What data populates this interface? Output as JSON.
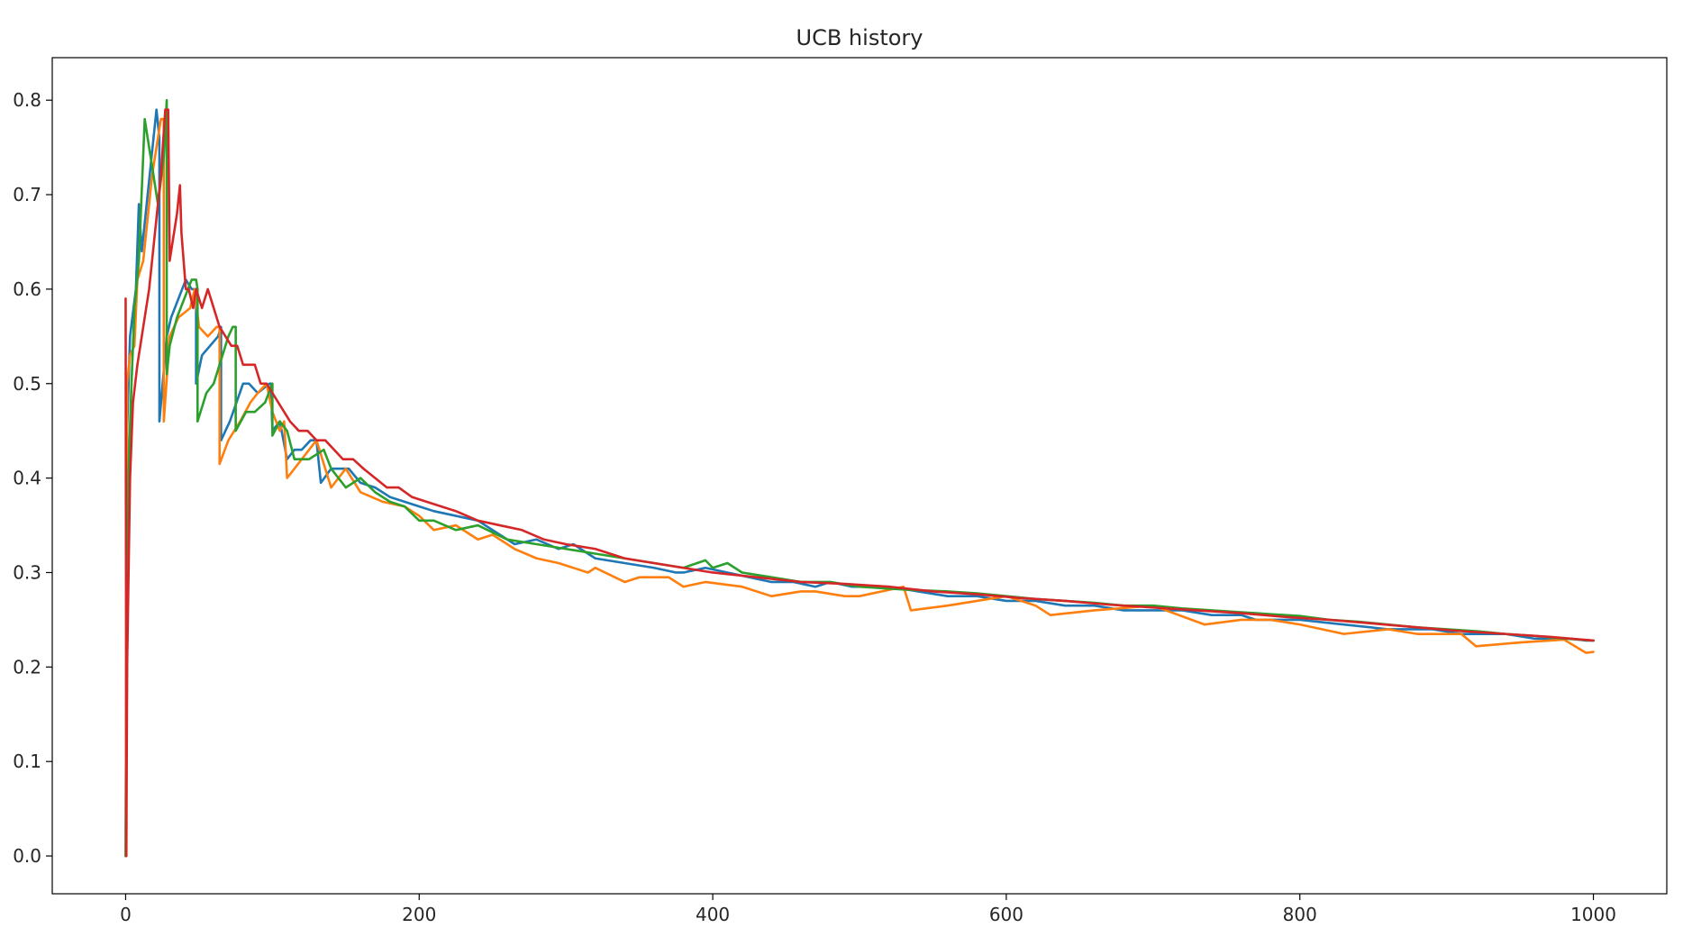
{
  "chart_data": {
    "type": "line",
    "title": "UCB history",
    "xlabel": "",
    "ylabel": "",
    "xlim": [
      -50,
      1050
    ],
    "ylim": [
      -0.04,
      0.845
    ],
    "xticks": [
      0,
      200,
      400,
      600,
      800,
      1000
    ],
    "yticks": [
      0.0,
      0.1,
      0.2,
      0.3,
      0.4,
      0.5,
      0.6,
      0.7,
      0.8
    ],
    "grid": false,
    "legend": "none",
    "series": [
      {
        "color": "#1f77b4",
        "x": [
          0,
          1,
          3,
          7,
          9,
          11,
          21,
          23,
          23,
          28,
          31,
          41,
          45,
          48,
          48,
          52,
          63,
          65,
          65,
          71,
          80,
          84,
          90,
          98,
          99,
          100,
          105,
          110,
          115,
          120,
          126,
          130,
          133,
          140,
          148,
          152,
          160,
          170,
          180,
          190,
          200,
          210,
          225,
          240,
          250,
          260,
          265,
          280,
          295,
          305,
          315,
          320,
          340,
          360,
          375,
          380,
          395,
          410,
          425,
          440,
          455,
          470,
          480,
          495,
          500,
          520,
          540,
          560,
          580,
          600,
          620,
          640,
          660,
          680,
          690,
          720,
          740,
          760,
          770,
          790,
          800,
          830,
          860,
          880,
          890,
          910,
          920,
          940,
          960,
          975,
          985,
          995,
          1000
        ],
        "y": [
          0.0,
          0.45,
          0.55,
          0.6,
          0.69,
          0.64,
          0.79,
          0.76,
          0.46,
          0.55,
          0.57,
          0.61,
          0.6,
          0.6,
          0.5,
          0.53,
          0.55,
          0.56,
          0.44,
          0.46,
          0.5,
          0.5,
          0.49,
          0.5,
          0.5,
          0.45,
          0.46,
          0.42,
          0.43,
          0.43,
          0.44,
          0.44,
          0.395,
          0.41,
          0.41,
          0.41,
          0.395,
          0.39,
          0.38,
          0.375,
          0.37,
          0.365,
          0.36,
          0.355,
          0.345,
          0.335,
          0.33,
          0.335,
          0.325,
          0.33,
          0.32,
          0.315,
          0.31,
          0.305,
          0.3,
          0.3,
          0.305,
          0.3,
          0.295,
          0.29,
          0.29,
          0.285,
          0.29,
          0.285,
          0.285,
          0.285,
          0.28,
          0.275,
          0.275,
          0.27,
          0.27,
          0.265,
          0.265,
          0.26,
          0.26,
          0.26,
          0.255,
          0.255,
          0.25,
          0.25,
          0.25,
          0.245,
          0.24,
          0.24,
          0.24,
          0.235,
          0.235,
          0.235,
          0.23,
          0.23,
          0.23,
          0.228,
          0.228
        ]
      },
      {
        "color": "#ff7f0e",
        "x": [
          0,
          1,
          3,
          6,
          8,
          12,
          18,
          24,
          26,
          26,
          30,
          36,
          44,
          47,
          50,
          56,
          62,
          64,
          64,
          70,
          78,
          85,
          90,
          96,
          100,
          105,
          108,
          110,
          120,
          130,
          140,
          150,
          160,
          175,
          190,
          200,
          210,
          225,
          240,
          250,
          265,
          280,
          295,
          315,
          320,
          340,
          350,
          370,
          380,
          395,
          420,
          440,
          460,
          470,
          490,
          500,
          530,
          535,
          560,
          600,
          620,
          630,
          660,
          700,
          735,
          760,
          780,
          800,
          830,
          860,
          880,
          910,
          920,
          950,
          980,
          995,
          1000
        ],
        "y": [
          0.0,
          0.5,
          0.53,
          0.54,
          0.61,
          0.63,
          0.72,
          0.78,
          0.78,
          0.46,
          0.55,
          0.57,
          0.58,
          0.6,
          0.56,
          0.55,
          0.56,
          0.56,
          0.415,
          0.44,
          0.46,
          0.48,
          0.49,
          0.5,
          0.47,
          0.45,
          0.46,
          0.4,
          0.42,
          0.44,
          0.39,
          0.41,
          0.385,
          0.375,
          0.37,
          0.36,
          0.345,
          0.35,
          0.335,
          0.34,
          0.325,
          0.315,
          0.31,
          0.3,
          0.305,
          0.29,
          0.295,
          0.295,
          0.285,
          0.29,
          0.285,
          0.275,
          0.28,
          0.28,
          0.275,
          0.275,
          0.285,
          0.26,
          0.265,
          0.275,
          0.265,
          0.255,
          0.26,
          0.265,
          0.245,
          0.25,
          0.25,
          0.245,
          0.235,
          0.24,
          0.235,
          0.235,
          0.222,
          0.226,
          0.229,
          0.215,
          0.216
        ]
      },
      {
        "color": "#2ca02c",
        "x": [
          0,
          2,
          4,
          6,
          9,
          13,
          17,
          17,
          22,
          26,
          28,
          28,
          30,
          35,
          40,
          45,
          48,
          49,
          49,
          55,
          60,
          70,
          73,
          75,
          75,
          82,
          88,
          95,
          100,
          100,
          105,
          110,
          115,
          125,
          135,
          140,
          150,
          160,
          170,
          180,
          190,
          200,
          210,
          225,
          240,
          260,
          280,
          300,
          320,
          340,
          360,
          380,
          395,
          400,
          410,
          420,
          440,
          460,
          480,
          500,
          530,
          560,
          580,
          600,
          620,
          640,
          660,
          680,
          700,
          720,
          740,
          760,
          780,
          800,
          820,
          840,
          860,
          880,
          900,
          920,
          940,
          960,
          980,
          1000
        ],
        "y": [
          0.0,
          0.41,
          0.5,
          0.58,
          0.63,
          0.78,
          0.74,
          0.74,
          0.69,
          0.74,
          0.8,
          0.51,
          0.54,
          0.57,
          0.59,
          0.61,
          0.61,
          0.6,
          0.46,
          0.49,
          0.5,
          0.55,
          0.56,
          0.56,
          0.45,
          0.47,
          0.47,
          0.48,
          0.5,
          0.445,
          0.46,
          0.45,
          0.42,
          0.42,
          0.43,
          0.41,
          0.39,
          0.4,
          0.385,
          0.375,
          0.37,
          0.355,
          0.355,
          0.345,
          0.35,
          0.335,
          0.33,
          0.325,
          0.32,
          0.315,
          0.31,
          0.305,
          0.313,
          0.305,
          0.31,
          0.3,
          0.295,
          0.29,
          0.29,
          0.285,
          0.282,
          0.28,
          0.278,
          0.275,
          0.272,
          0.27,
          0.268,
          0.265,
          0.265,
          0.262,
          0.26,
          0.258,
          0.256,
          0.254,
          0.25,
          0.248,
          0.245,
          0.242,
          0.24,
          0.238,
          0.235,
          0.233,
          0.23,
          0.228
        ]
      },
      {
        "color": "#d62728",
        "x": [
          0,
          0.5,
          1,
          3,
          5,
          8,
          12,
          16,
          20,
          24,
          27,
          29,
          30,
          35,
          37,
          38,
          41,
          43,
          46,
          48,
          52,
          56,
          60,
          64,
          68,
          72,
          76,
          80,
          84,
          88,
          92,
          96,
          100,
          104,
          108,
          112,
          118,
          124,
          130,
          136,
          142,
          148,
          155,
          162,
          170,
          178,
          186,
          195,
          205,
          215,
          225,
          240,
          255,
          270,
          285,
          300,
          320,
          340,
          360,
          380,
          400,
          430,
          460,
          490,
          520,
          550,
          580,
          610,
          640,
          670,
          700,
          730,
          760,
          790,
          820,
          850,
          880,
          910,
          940,
          970,
          1000
        ],
        "y": [
          0.59,
          0.0,
          0.2,
          0.4,
          0.48,
          0.52,
          0.56,
          0.6,
          0.66,
          0.72,
          0.79,
          0.79,
          0.63,
          0.68,
          0.71,
          0.66,
          0.6,
          0.6,
          0.58,
          0.6,
          0.58,
          0.6,
          0.58,
          0.56,
          0.55,
          0.54,
          0.54,
          0.52,
          0.52,
          0.52,
          0.5,
          0.5,
          0.49,
          0.48,
          0.47,
          0.46,
          0.45,
          0.45,
          0.44,
          0.44,
          0.43,
          0.42,
          0.42,
          0.41,
          0.4,
          0.39,
          0.39,
          0.38,
          0.375,
          0.37,
          0.365,
          0.355,
          0.35,
          0.345,
          0.335,
          0.33,
          0.325,
          0.315,
          0.31,
          0.305,
          0.3,
          0.295,
          0.29,
          0.288,
          0.285,
          0.28,
          0.277,
          0.273,
          0.27,
          0.266,
          0.263,
          0.26,
          0.257,
          0.253,
          0.25,
          0.246,
          0.242,
          0.238,
          0.235,
          0.232,
          0.228
        ]
      }
    ]
  }
}
